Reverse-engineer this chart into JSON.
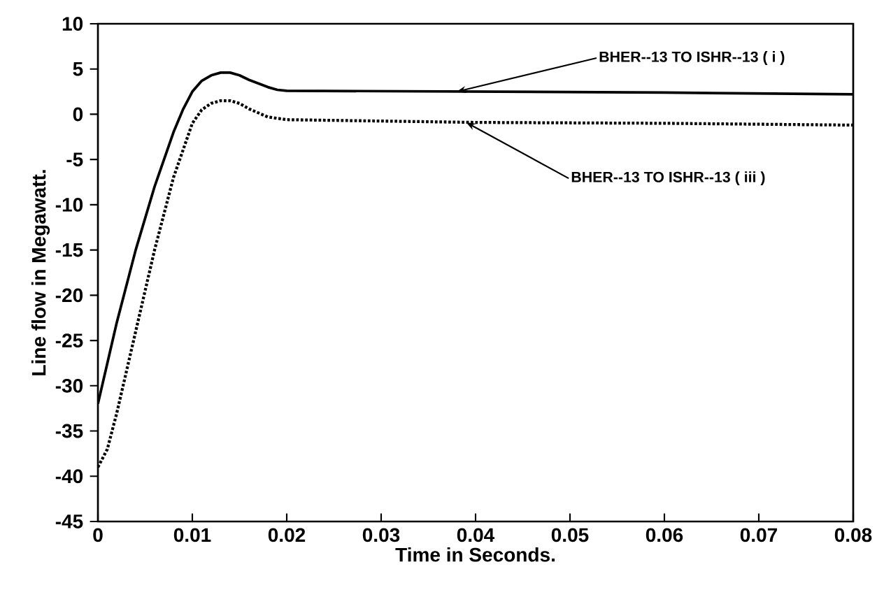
{
  "chart_data": {
    "type": "line",
    "xlabel": "Time in Seconds.",
    "ylabel": "Line flow in Megawatt.",
    "xlim": [
      0,
      0.08
    ],
    "ylim": [
      -45,
      10
    ],
    "xticks": [
      0,
      0.01,
      0.02,
      0.03,
      0.04,
      0.05,
      0.06,
      0.07,
      0.08
    ],
    "yticks": [
      -45,
      -40,
      -35,
      -30,
      -25,
      -20,
      -15,
      -10,
      -5,
      0,
      5,
      10
    ],
    "marker": "none",
    "series": [
      {
        "color": "#000000",
        "line_style": "solid",
        "x": [
          0,
          0.002,
          0.004,
          0.006,
          0.008,
          0.009,
          0.01,
          0.011,
          0.012,
          0.013,
          0.014,
          0.015,
          0.016,
          0.018,
          0.019,
          0.02,
          0.04,
          0.06,
          0.08
        ],
        "values": [
          -32,
          -23,
          -15,
          -8,
          -2,
          0.5,
          2.5,
          3.7,
          4.3,
          4.6,
          4.6,
          4.3,
          3.8,
          3.0,
          2.7,
          2.6,
          2.5,
          2.4,
          2.2
        ]
      },
      {
        "color": "#000000",
        "line_style": "dotted",
        "x": [
          0,
          0.001,
          0.002,
          0.004,
          0.006,
          0.008,
          0.009,
          0.01,
          0.011,
          0.012,
          0.013,
          0.014,
          0.015,
          0.016,
          0.018,
          0.02,
          0.04,
          0.06,
          0.08
        ],
        "values": [
          -39,
          -37,
          -33,
          -24,
          -15,
          -7,
          -4,
          -1,
          0.5,
          1.2,
          1.5,
          1.5,
          1.2,
          0.6,
          -0.3,
          -0.6,
          -0.9,
          -1.0,
          -1.2
        ]
      }
    ],
    "annotations": [
      {
        "text": "BHER--13 TO ISHR--13 ( i )",
        "x": 0.038,
        "y": 2.5
      },
      {
        "text": "BHER--13 TO ISHR--13 ( iii )",
        "x": 0.039,
        "y": -0.9
      }
    ]
  }
}
